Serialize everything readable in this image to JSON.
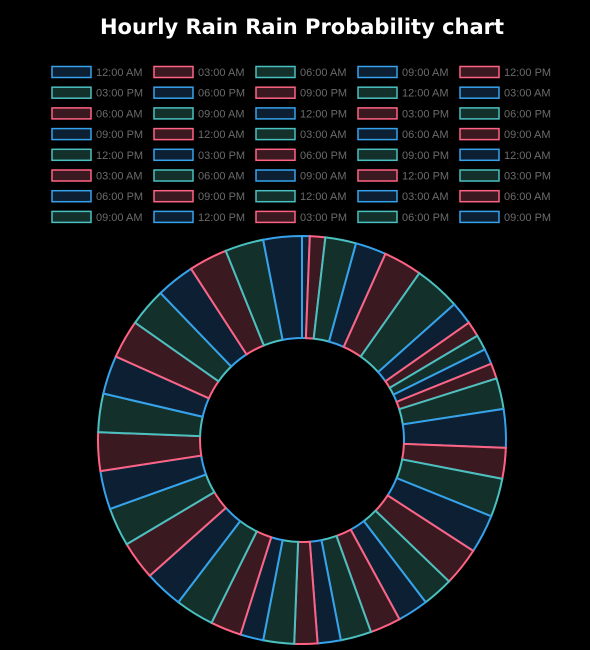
{
  "chart_data": {
    "type": "doughnut",
    "title": "Hourly Rain Rain Probability chart",
    "legend_position": "top",
    "colors": {
      "blue": {
        "border": "#36a2eb",
        "fill": "#0d2033"
      },
      "pink": {
        "border": "#ff6384",
        "fill": "#3a1920"
      },
      "teal": {
        "border": "#4bc0c0",
        "fill": "#13302a"
      }
    },
    "color_cycle": [
      "blue",
      "pink",
      "teal"
    ],
    "labels": [
      "12:00 AM",
      "03:00 AM",
      "06:00 AM",
      "09:00 AM",
      "12:00 PM",
      "03:00 PM",
      "06:00 PM",
      "09:00 PM",
      "12:00 AM",
      "03:00 AM",
      "06:00 AM",
      "09:00 AM",
      "12:00 PM",
      "03:00 PM",
      "06:00 PM",
      "09:00 PM",
      "12:00 AM",
      "03:00 AM",
      "06:00 AM",
      "09:00 AM",
      "12:00 PM",
      "03:00 PM",
      "06:00 PM",
      "09:00 PM",
      "12:00 AM",
      "03:00 AM",
      "06:00 AM",
      "09:00 AM",
      "12:00 PM",
      "03:00 PM",
      "06:00 PM",
      "09:00 PM",
      "12:00 AM",
      "03:00 AM",
      "06:00 AM",
      "09:00 AM",
      "12:00 PM",
      "03:00 PM",
      "06:00 PM",
      "09:00 PM"
    ],
    "values": [
      1,
      2,
      4,
      4,
      5,
      6,
      3,
      2,
      2,
      2,
      2,
      4,
      5,
      4,
      5,
      5,
      5,
      4,
      4,
      4,
      4,
      3,
      3,
      4,
      3,
      4,
      5,
      5,
      5,
      5,
      5,
      5,
      5,
      5,
      5,
      5,
      5,
      5,
      5,
      5
    ]
  }
}
